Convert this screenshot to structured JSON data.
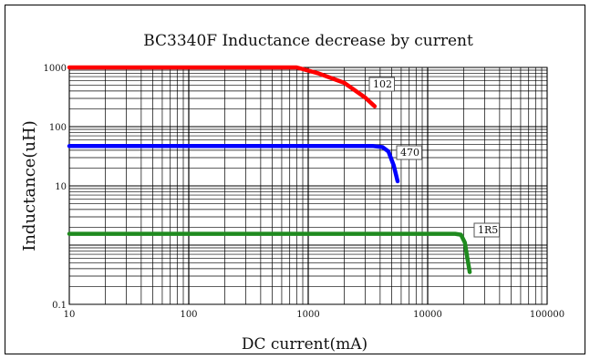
{
  "chart_data": {
    "type": "line",
    "title": "BC3340F Inductance decrease by current",
    "xlabel": "DC current(mA)",
    "ylabel": "Inductance(uH)",
    "x_scale": "log",
    "y_scale": "log",
    "xlim": [
      10,
      100000
    ],
    "ylim": [
      0.1,
      1000
    ],
    "grid": true,
    "x_ticks": [
      "10",
      "100",
      "1000",
      "10000",
      "100000"
    ],
    "y_ticks": [
      "1000",
      "100",
      "10",
      "0.1"
    ],
    "series": [
      {
        "name": "102",
        "color": "#ff0000",
        "x": [
          10,
          200,
          800,
          1200,
          2000,
          3000,
          3600
        ],
        "y": [
          1000,
          1000,
          1000,
          800,
          550,
          310,
          220
        ]
      },
      {
        "name": "470",
        "color": "#0000ff",
        "x": [
          10,
          500,
          3500,
          4200,
          4700,
          5200,
          5600
        ],
        "y": [
          47,
          47,
          47,
          45,
          38,
          22,
          12
        ]
      },
      {
        "name": "1R5",
        "color": "#1f8a1f",
        "x": [
          10,
          1000,
          17000,
          19000,
          20500,
          21500,
          22500
        ],
        "y": [
          1.55,
          1.55,
          1.55,
          1.5,
          1.1,
          0.6,
          0.35
        ]
      }
    ]
  }
}
